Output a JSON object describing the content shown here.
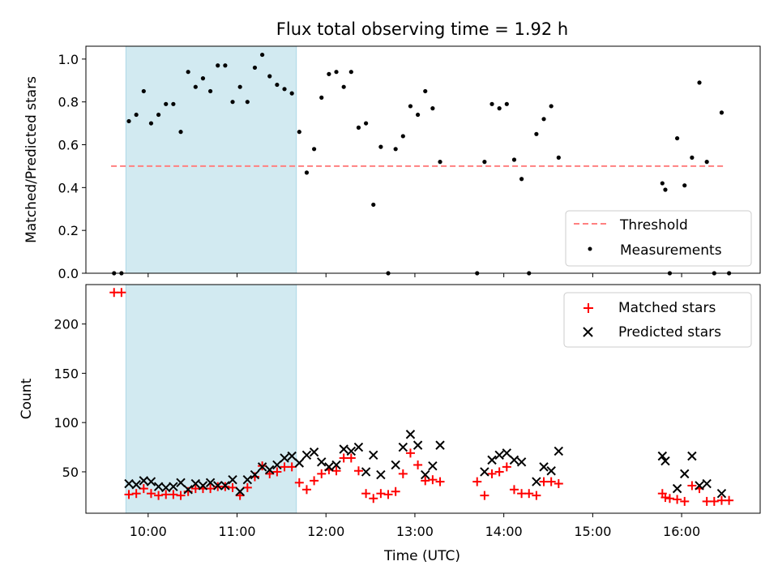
{
  "chart_data": [
    {
      "type": "scatter",
      "title": "Flux total observing time = 1.92 h",
      "ylabel": "Matched/Predicted stars",
      "ylim": [
        0,
        1.06
      ],
      "yticks": [
        "0.0",
        "0.2",
        "0.4",
        "0.6",
        "0.8",
        "1.0"
      ],
      "ytick_values": [
        0,
        0.2,
        0.4,
        0.6,
        0.8,
        1.0
      ],
      "shaded_span": [
        "09:45",
        "11:40"
      ],
      "shaded_color": "#add8e6",
      "threshold": {
        "name": "Threshold",
        "y": 0.5,
        "x_range": [
          "09:35",
          "16:30"
        ],
        "color": "#ff8080"
      },
      "legend_position": "lower right",
      "series": [
        {
          "name": "Measurements",
          "color": "#000000",
          "points": [
            [
              "09:37",
              0
            ],
            [
              "09:42",
              0
            ],
            [
              "09:47",
              0.71
            ],
            [
              "09:52",
              0.74
            ],
            [
              "09:57",
              0.85
            ],
            [
              "10:02",
              0.7
            ],
            [
              "10:07",
              0.74
            ],
            [
              "10:12",
              0.79
            ],
            [
              "10:17",
              0.79
            ],
            [
              "10:22",
              0.66
            ],
            [
              "10:27",
              0.94
            ],
            [
              "10:32",
              0.87
            ],
            [
              "10:37",
              0.91
            ],
            [
              "10:42",
              0.85
            ],
            [
              "10:47",
              0.97
            ],
            [
              "10:52",
              0.97
            ],
            [
              "10:57",
              0.8
            ],
            [
              "11:02",
              0.87
            ],
            [
              "11:07",
              0.8
            ],
            [
              "11:12",
              0.96
            ],
            [
              "11:17",
              1.02
            ],
            [
              "11:22",
              0.92
            ],
            [
              "11:27",
              0.88
            ],
            [
              "11:32",
              0.86
            ],
            [
              "11:37",
              0.84
            ],
            [
              "11:42",
              0.66
            ],
            [
              "11:47",
              0.47
            ],
            [
              "11:52",
              0.58
            ],
            [
              "11:57",
              0.82
            ],
            [
              "12:02",
              0.93
            ],
            [
              "12:07",
              0.94
            ],
            [
              "12:12",
              0.87
            ],
            [
              "12:17",
              0.94
            ],
            [
              "12:22",
              0.68
            ],
            [
              "12:27",
              0.7
            ],
            [
              "12:32",
              0.32
            ],
            [
              "12:37",
              0.59
            ],
            [
              "12:42",
              0
            ],
            [
              "12:47",
              0.58
            ],
            [
              "12:52",
              0.64
            ],
            [
              "12:57",
              0.78
            ],
            [
              "13:02",
              0.74
            ],
            [
              "13:07",
              0.85
            ],
            [
              "13:12",
              0.77
            ],
            [
              "13:17",
              0.52
            ],
            [
              "13:42",
              0
            ],
            [
              "13:47",
              0.52
            ],
            [
              "13:52",
              0.79
            ],
            [
              "13:57",
              0.77
            ],
            [
              "14:02",
              0.79
            ],
            [
              "14:07",
              0.53
            ],
            [
              "14:12",
              0.44
            ],
            [
              "14:17",
              0
            ],
            [
              "14:22",
              0.65
            ],
            [
              "14:27",
              0.72
            ],
            [
              "14:32",
              0.78
            ],
            [
              "14:37",
              0.54
            ],
            [
              "15:47",
              0.42
            ],
            [
              "15:49",
              0.39
            ],
            [
              "15:52",
              0
            ],
            [
              "15:57",
              0.63
            ],
            [
              "16:02",
              0.41
            ],
            [
              "16:07",
              0.54
            ],
            [
              "16:12",
              0.89
            ],
            [
              "16:17",
              0.52
            ],
            [
              "16:22",
              0
            ],
            [
              "16:27",
              0.75
            ],
            [
              "16:32",
              0
            ]
          ]
        }
      ]
    },
    {
      "type": "scatter",
      "xlabel": "Time (UTC)",
      "ylabel": "Count",
      "ylim": [
        8,
        240
      ],
      "yticks": [
        "50",
        "100",
        "150",
        "200"
      ],
      "ytick_values": [
        50,
        100,
        150,
        200
      ],
      "xlim": [
        "09:18",
        "16:53"
      ],
      "xticks": [
        "10:00",
        "11:00",
        "12:00",
        "13:00",
        "14:00",
        "15:00",
        "16:00"
      ],
      "shaded_span": [
        "09:45",
        "11:40"
      ],
      "shaded_color": "#add8e6",
      "legend_position": "upper right",
      "series": [
        {
          "name": "Matched stars",
          "marker": "plus",
          "color": "#ff0000",
          "points": [
            [
              "09:37",
              232
            ],
            [
              "09:42",
              232
            ],
            [
              "09:47",
              27
            ],
            [
              "09:52",
              28
            ],
            [
              "09:57",
              33
            ],
            [
              "10:02",
              28
            ],
            [
              "10:07",
              26
            ],
            [
              "10:12",
              27
            ],
            [
              "10:17",
              27
            ],
            [
              "10:22",
              26
            ],
            [
              "10:27",
              30
            ],
            [
              "10:32",
              33
            ],
            [
              "10:37",
              33
            ],
            [
              "10:42",
              33
            ],
            [
              "10:47",
              35
            ],
            [
              "10:52",
              35
            ],
            [
              "10:57",
              34
            ],
            [
              "11:02",
              26
            ],
            [
              "11:07",
              34
            ],
            [
              "11:12",
              45
            ],
            [
              "11:17",
              56
            ],
            [
              "11:22",
              48
            ],
            [
              "11:27",
              50
            ],
            [
              "11:32",
              55
            ],
            [
              "11:37",
              55
            ],
            [
              "11:42",
              39
            ],
            [
              "11:47",
              32
            ],
            [
              "11:52",
              41
            ],
            [
              "11:57",
              48
            ],
            [
              "12:02",
              52
            ],
            [
              "12:07",
              51
            ],
            [
              "12:12",
              64
            ],
            [
              "12:17",
              64
            ],
            [
              "12:22",
              51
            ],
            [
              "12:27",
              28
            ],
            [
              "12:32",
              23
            ],
            [
              "12:37",
              28
            ],
            [
              "12:42",
              27
            ],
            [
              "12:47",
              30
            ],
            [
              "12:52",
              48
            ],
            [
              "12:57",
              69
            ],
            [
              "13:02",
              57
            ],
            [
              "13:07",
              41
            ],
            [
              "13:12",
              42
            ],
            [
              "13:17",
              40
            ],
            [
              "13:42",
              40
            ],
            [
              "13:47",
              26
            ],
            [
              "13:52",
              48
            ],
            [
              "13:57",
              50
            ],
            [
              "14:02",
              55
            ],
            [
              "14:07",
              32
            ],
            [
              "14:12",
              28
            ],
            [
              "14:17",
              28
            ],
            [
              "14:22",
              26
            ],
            [
              "14:27",
              40
            ],
            [
              "14:32",
              40
            ],
            [
              "14:37",
              38
            ],
            [
              "15:47",
              28
            ],
            [
              "15:49",
              24
            ],
            [
              "15:52",
              23
            ],
            [
              "15:57",
              22
            ],
            [
              "16:02",
              20
            ],
            [
              "16:07",
              36
            ],
            [
              "16:12",
              33
            ],
            [
              "16:17",
              20
            ],
            [
              "16:22",
              20
            ],
            [
              "16:27",
              21
            ],
            [
              "16:32",
              21
            ]
          ]
        },
        {
          "name": "Predicted stars",
          "marker": "x",
          "color": "#000000",
          "points": [
            [
              "09:47",
              38
            ],
            [
              "09:52",
              37
            ],
            [
              "09:57",
              41
            ],
            [
              "10:02",
              40
            ],
            [
              "10:07",
              35
            ],
            [
              "10:12",
              34
            ],
            [
              "10:17",
              35
            ],
            [
              "10:22",
              39
            ],
            [
              "10:27",
              32
            ],
            [
              "10:32",
              38
            ],
            [
              "10:37",
              36
            ],
            [
              "10:42",
              39
            ],
            [
              "10:47",
              36
            ],
            [
              "10:52",
              36
            ],
            [
              "10:57",
              42
            ],
            [
              "11:02",
              30
            ],
            [
              "11:07",
              42
            ],
            [
              "11:12",
              47
            ],
            [
              "11:17",
              55
            ],
            [
              "11:22",
              52
            ],
            [
              "11:27",
              57
            ],
            [
              "11:32",
              64
            ],
            [
              "11:37",
              66
            ],
            [
              "11:42",
              59
            ],
            [
              "11:47",
              67
            ],
            [
              "11:52",
              70
            ],
            [
              "11:57",
              60
            ],
            [
              "12:02",
              55
            ],
            [
              "12:07",
              57
            ],
            [
              "12:12",
              73
            ],
            [
              "12:17",
              71
            ],
            [
              "12:22",
              75
            ],
            [
              "12:27",
              50
            ],
            [
              "12:32",
              67
            ],
            [
              "12:37",
              47
            ],
            [
              "12:47",
              57
            ],
            [
              "12:52",
              75
            ],
            [
              "12:57",
              88
            ],
            [
              "13:02",
              77
            ],
            [
              "13:07",
              47
            ],
            [
              "13:12",
              56
            ],
            [
              "13:17",
              77
            ],
            [
              "13:47",
              50
            ],
            [
              "13:52",
              62
            ],
            [
              "13:57",
              67
            ],
            [
              "14:02",
              69
            ],
            [
              "14:07",
              62
            ],
            [
              "14:12",
              60
            ],
            [
              "14:22",
              40
            ],
            [
              "14:27",
              55
            ],
            [
              "14:32",
              51
            ],
            [
              "14:37",
              71
            ],
            [
              "15:47",
              66
            ],
            [
              "15:49",
              61
            ],
            [
              "15:57",
              33
            ],
            [
              "16:02",
              48
            ],
            [
              "16:07",
              66
            ],
            [
              "16:12",
              36
            ],
            [
              "16:17",
              38
            ],
            [
              "16:27",
              28
            ]
          ]
        }
      ]
    }
  ]
}
